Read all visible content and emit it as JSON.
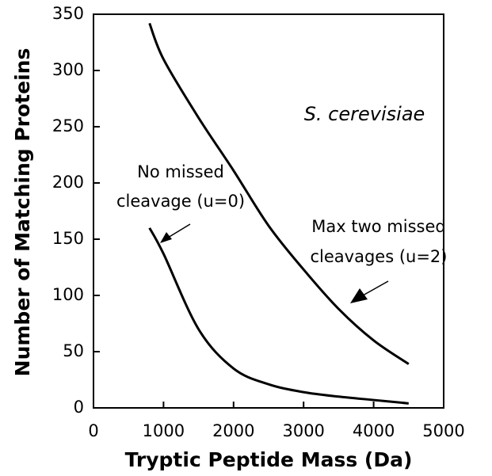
{
  "chart_data": {
    "type": "line",
    "xlabel": "Tryptic Peptide Mass (Da)",
    "ylabel": "Number of Matching Proteins",
    "x": [
      800,
      1000,
      1500,
      2000,
      2500,
      3000,
      3500,
      4000,
      4500
    ],
    "series": [
      {
        "color": "#000000",
        "values": [
          342,
          310,
          258,
          211,
          162,
          123,
          88,
          60,
          39
        ]
      },
      {
        "color": "#000000",
        "values": [
          160,
          137,
          70,
          35,
          21,
          14,
          10,
          7,
          4
        ]
      }
    ],
    "annotations": [
      "S. cerevisiae",
      "No missed",
      "cleavage (u=0)",
      "Max two missed",
      "cleavages (u=2)"
    ],
    "xlim": [
      0,
      5000
    ],
    "xticks": [
      0,
      1000,
      2000,
      3000,
      4000,
      5000
    ],
    "ylim": [
      0,
      350
    ],
    "yticks": [
      0,
      50,
      100,
      150,
      200,
      250,
      300,
      350
    ],
    "grid": false
  }
}
